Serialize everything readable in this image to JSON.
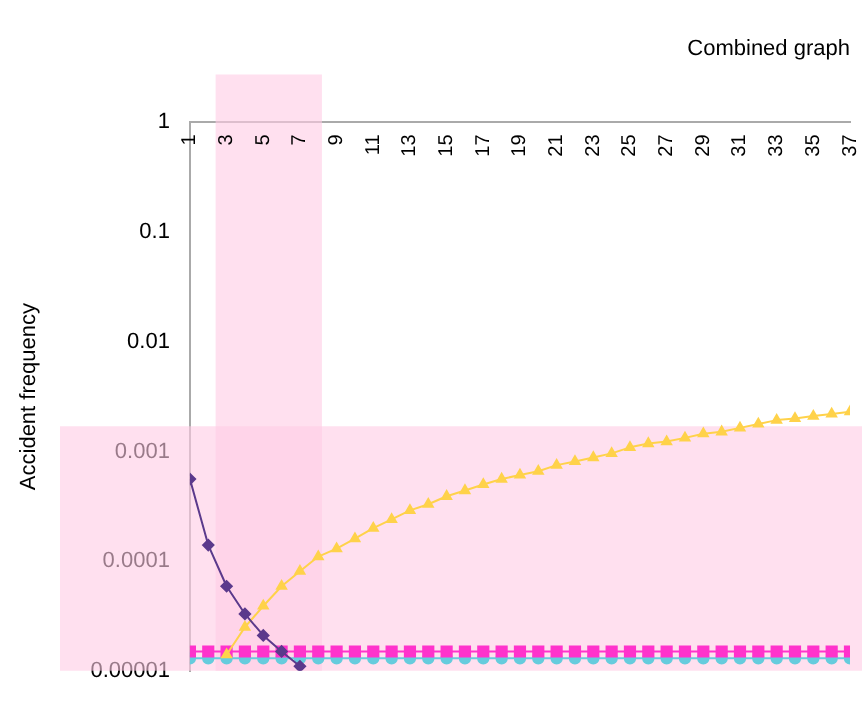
{
  "chart_data": {
    "type": "line",
    "title": "Combined graph",
    "ylabel": "Accident frequency",
    "x": [
      1,
      2,
      3,
      4,
      5,
      6,
      7,
      8,
      9,
      10,
      11,
      12,
      13,
      14,
      15,
      16,
      17,
      18,
      19,
      20,
      21,
      22,
      23,
      24,
      25,
      26,
      27,
      28,
      29,
      30,
      31,
      32,
      33,
      34,
      35,
      36,
      37
    ],
    "xlim": [
      1,
      37
    ],
    "xticks": [
      1,
      3,
      5,
      7,
      9,
      11,
      13,
      15,
      17,
      19,
      21,
      23,
      25,
      27,
      29,
      31,
      33,
      35,
      37
    ],
    "log": "y",
    "ylim": [
      1e-05,
      1
    ],
    "yticks": [
      {
        "value": 1e-05,
        "label": "0.00001"
      },
      {
        "value": 0.0001,
        "label": "0.0001"
      },
      0.001,
      0.01,
      0.1,
      1
    ],
    "grid": false,
    "legend": false,
    "series": [
      {
        "color": "#5b3a8c",
        "marker": "diamond",
        "values": [
          0.00056,
          0.00014,
          5.9e-05,
          3.3e-05,
          2.1e-05,
          1.5e-05,
          1.1e-05,
          null,
          null,
          null,
          null,
          null,
          null,
          null,
          null,
          null,
          null,
          null,
          null,
          null,
          null,
          null,
          null,
          null,
          null,
          null,
          null,
          null,
          null,
          null,
          null,
          null,
          null,
          null,
          null,
          null,
          null
        ]
      },
      {
        "color": "#ffd24a",
        "marker": "triangle",
        "values": [
          null,
          null,
          1.4e-05,
          2.5e-05,
          3.9e-05,
          5.9e-05,
          8.1e-05,
          0.00011,
          0.00013,
          0.00016,
          0.0002,
          0.00024,
          0.00029,
          0.00033,
          0.00039,
          0.00044,
          0.0005,
          0.00056,
          0.00061,
          0.00066,
          0.00075,
          0.00081,
          0.00088,
          0.00096,
          0.00109,
          0.00118,
          0.00123,
          0.00133,
          0.00145,
          0.00151,
          0.00164,
          0.00178,
          0.00193,
          0.002,
          0.0021,
          0.0022,
          0.0023
        ]
      },
      {
        "color": "#ff33cc",
        "marker": "square",
        "values": [
          1.5e-05,
          1.5e-05,
          1.5e-05,
          1.5e-05,
          1.5e-05,
          1.5e-05,
          1.5e-05,
          1.5e-05,
          1.5e-05,
          1.5e-05,
          1.5e-05,
          1.5e-05,
          1.5e-05,
          1.5e-05,
          1.5e-05,
          1.5e-05,
          1.5e-05,
          1.5e-05,
          1.5e-05,
          1.5e-05,
          1.5e-05,
          1.5e-05,
          1.5e-05,
          1.5e-05,
          1.5e-05,
          1.5e-05,
          1.5e-05,
          1.5e-05,
          1.5e-05,
          1.5e-05,
          1.5e-05,
          1.5e-05,
          1.5e-05,
          1.5e-05,
          1.5e-05,
          1.5e-05,
          1.5e-05
        ]
      },
      {
        "color": "#66ccdd",
        "marker": "circle",
        "values": [
          1.3e-05,
          1.3e-05,
          1.3e-05,
          1.3e-05,
          1.3e-05,
          1.3e-05,
          1.3e-05,
          1.3e-05,
          1.3e-05,
          1.3e-05,
          1.3e-05,
          1.3e-05,
          1.3e-05,
          1.3e-05,
          1.3e-05,
          1.3e-05,
          1.3e-05,
          1.3e-05,
          1.3e-05,
          1.3e-05,
          1.3e-05,
          1.3e-05,
          1.3e-05,
          1.3e-05,
          1.3e-05,
          1.3e-05,
          1.3e-05,
          1.3e-05,
          1.3e-05,
          1.3e-05,
          1.3e-05,
          1.3e-05,
          1.3e-05,
          1.3e-05,
          1.3e-05,
          1.3e-05,
          1.3e-05
        ]
      }
    ],
    "bands": [
      {
        "axis": "x",
        "from": 2.4,
        "to": 8.2,
        "color": "#ffcce5"
      },
      {
        "axis": "y",
        "from": 1e-05,
        "to": 0.0017,
        "color": "#ffcce5"
      }
    ]
  }
}
